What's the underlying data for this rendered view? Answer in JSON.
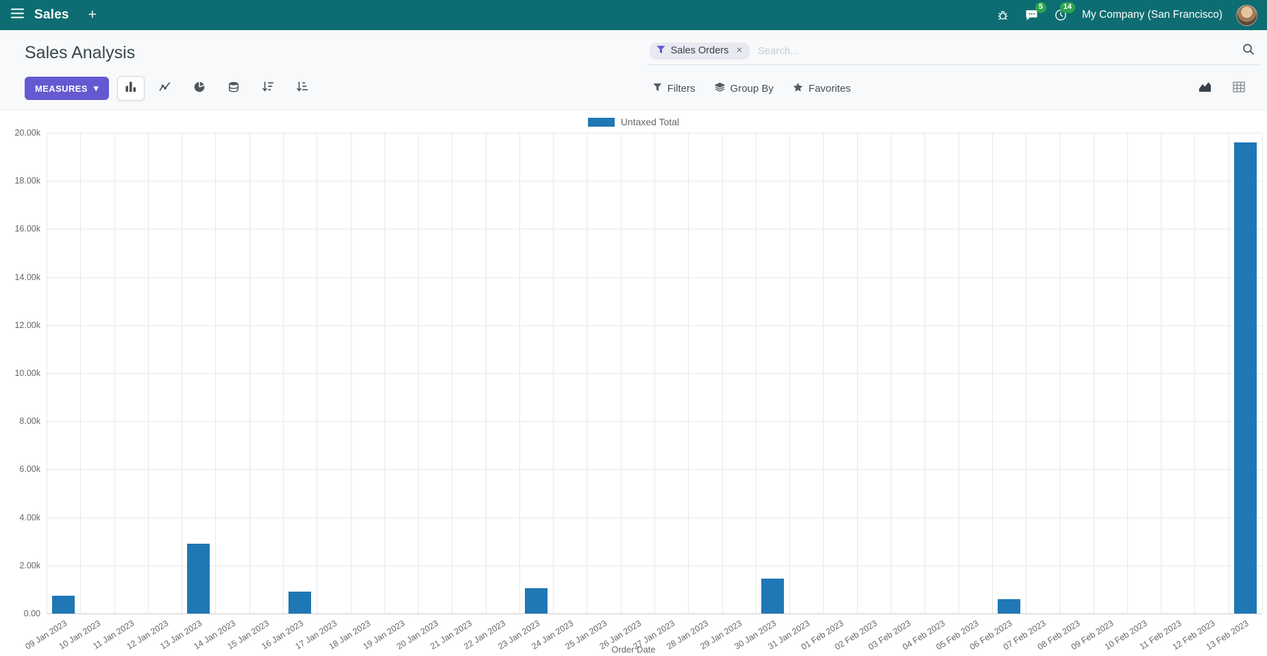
{
  "navbar": {
    "app_name": "Sales",
    "new_label": "+",
    "messages_badge": "5",
    "activities_badge": "14",
    "company": "My Company (San Francisco)"
  },
  "control_panel": {
    "title": "Sales Analysis",
    "measures": {
      "label": "MEASURES",
      "caret": "▾"
    },
    "search": {
      "facet_label": "Sales Orders",
      "facet_remove": "×",
      "placeholder": "Search..."
    },
    "filters_label": "Filters",
    "group_by_label": "Group By",
    "favorites_label": "Favorites"
  },
  "icons": {
    "nav": [
      "apps-menu-icon",
      "bug-icon",
      "messages-icon",
      "activities-icon"
    ],
    "toolbar": [
      "bar-chart-icon",
      "line-chart-icon",
      "pie-chart-icon",
      "stacked-icon",
      "sort-descending-icon",
      "sort-ascending-icon"
    ],
    "search": [
      "funnel-icon",
      "magnifier-icon"
    ],
    "view_switcher": [
      "graph-view-icon",
      "pivot-view-icon"
    ]
  },
  "chart_data": {
    "type": "bar",
    "title": "",
    "legend": [
      "Untaxed Total"
    ],
    "legend_position": "top",
    "series_color": "#1f77b4",
    "xlabel": "Order Date",
    "ylabel": "",
    "ylim": [
      0,
      20000
    ],
    "grid": true,
    "y_ticks": [
      {
        "value": 0,
        "label": "0.00"
      },
      {
        "value": 2000,
        "label": "2.00k"
      },
      {
        "value": 4000,
        "label": "4.00k"
      },
      {
        "value": 6000,
        "label": "6.00k"
      },
      {
        "value": 8000,
        "label": "8.00k"
      },
      {
        "value": 10000,
        "label": "10.00k"
      },
      {
        "value": 12000,
        "label": "12.00k"
      },
      {
        "value": 14000,
        "label": "14.00k"
      },
      {
        "value": 16000,
        "label": "16.00k"
      },
      {
        "value": 18000,
        "label": "18.00k"
      },
      {
        "value": 20000,
        "label": "20.00k"
      }
    ],
    "categories": [
      "09 Jan 2023",
      "10 Jan 2023",
      "11 Jan 2023",
      "12 Jan 2023",
      "13 Jan 2023",
      "14 Jan 2023",
      "15 Jan 2023",
      "16 Jan 2023",
      "17 Jan 2023",
      "18 Jan 2023",
      "19 Jan 2023",
      "20 Jan 2023",
      "21 Jan 2023",
      "22 Jan 2023",
      "23 Jan 2023",
      "24 Jan 2023",
      "25 Jan 2023",
      "26 Jan 2023",
      "27 Jan 2023",
      "28 Jan 2023",
      "29 Jan 2023",
      "30 Jan 2023",
      "31 Jan 2023",
      "01 Feb 2023",
      "02 Feb 2023",
      "03 Feb 2023",
      "04 Feb 2023",
      "05 Feb 2023",
      "06 Feb 2023",
      "07 Feb 2023",
      "08 Feb 2023",
      "09 Feb 2023",
      "10 Feb 2023",
      "11 Feb 2023",
      "12 Feb 2023",
      "13 Feb 2023"
    ],
    "values": [
      750,
      0,
      0,
      0,
      2900,
      0,
      0,
      900,
      0,
      0,
      0,
      0,
      0,
      0,
      1050,
      0,
      0,
      0,
      0,
      0,
      0,
      1450,
      0,
      0,
      0,
      0,
      0,
      0,
      600,
      0,
      0,
      0,
      0,
      0,
      0,
      19600
    ]
  }
}
